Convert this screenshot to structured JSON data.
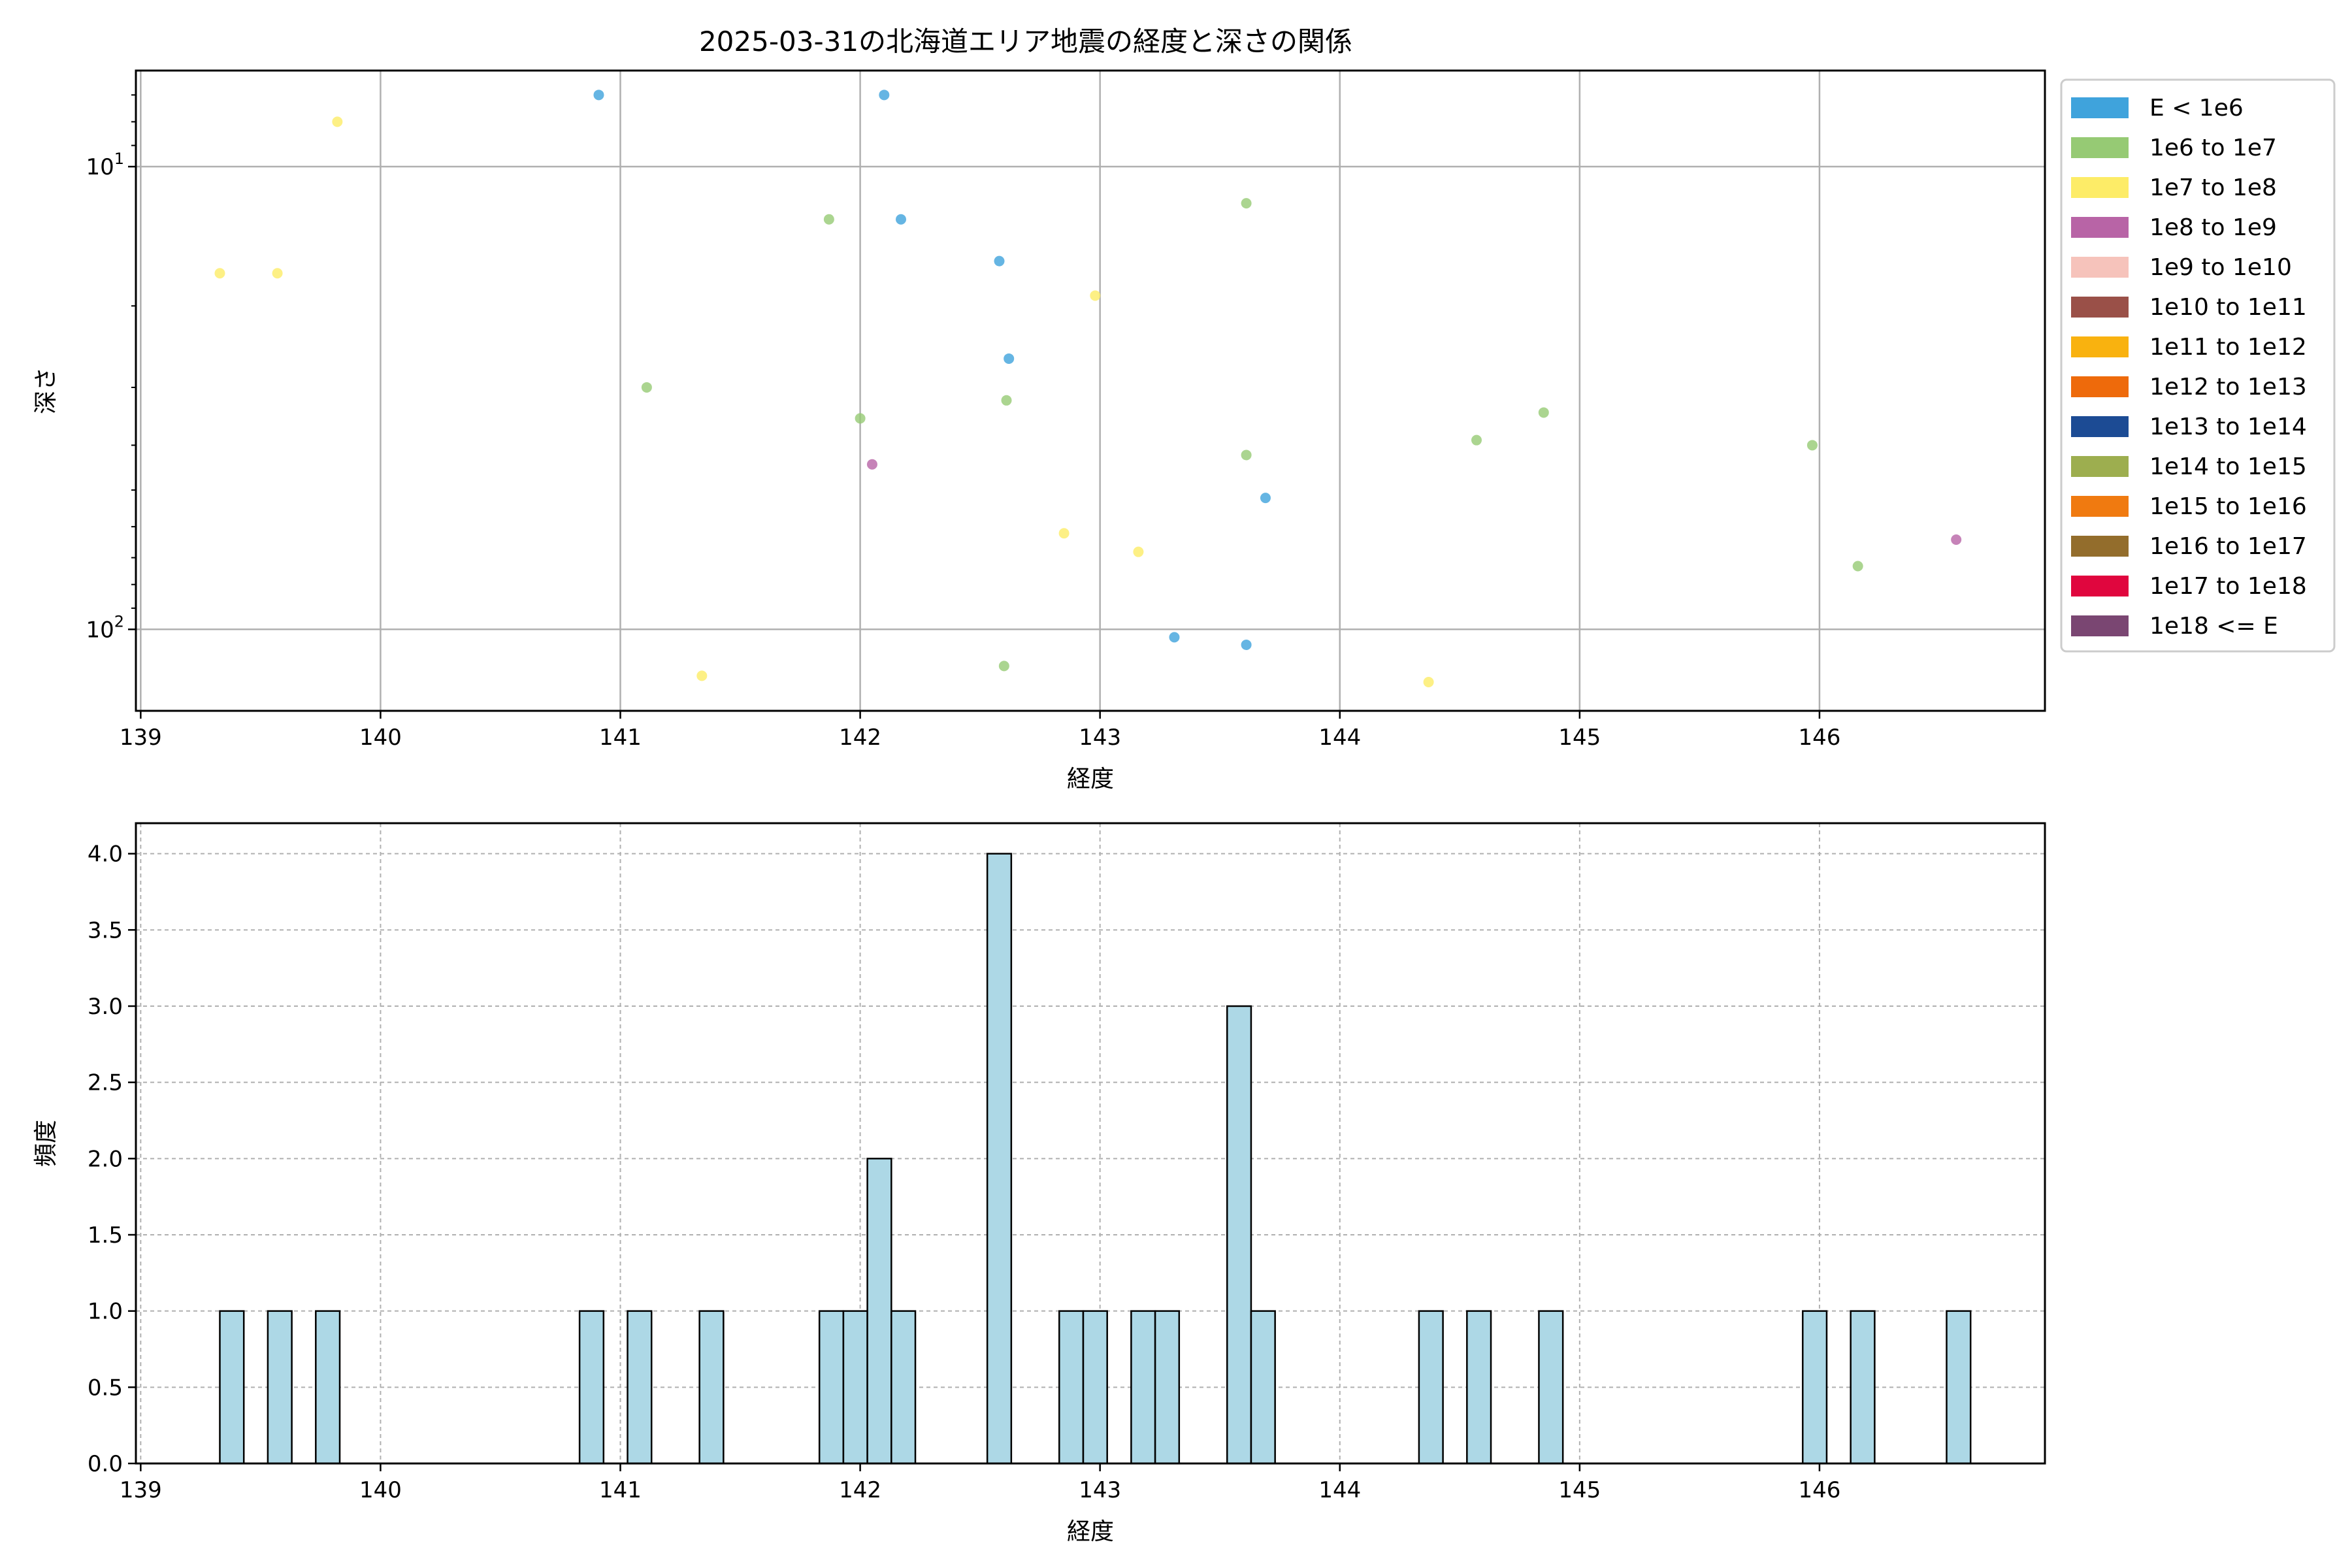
{
  "figure_title": "2025-03-31の北海道エリア地震の経度と深さの関係",
  "chart_data": [
    {
      "type": "scatter",
      "xlabel": "経度",
      "ylabel": "深さ",
      "xlim": [
        138.98,
        146.94
      ],
      "ylim": [
        150,
        6.2
      ],
      "yscale": "log",
      "y_inverted": true,
      "grid": true,
      "xticks": [
        139,
        140,
        141,
        142,
        143,
        144,
        145,
        146
      ],
      "yticks": [
        {
          "value": 10,
          "label": "10^1"
        },
        {
          "value": 100,
          "label": "10^2"
        }
      ],
      "legend_position": "outside-right",
      "legend": [
        {
          "label": "E < 1e6",
          "color": "#3fa3dc"
        },
        {
          "label": "1e6 to 1e7",
          "color": "#96ca74"
        },
        {
          "label": "1e7 to 1e8",
          "color": "#fdec67"
        },
        {
          "label": "1e8 to 1e9",
          "color": "#b864a6"
        },
        {
          "label": "1e9 to 1e10",
          "color": "#f6c3bb"
        },
        {
          "label": "1e10 to 1e11",
          "color": "#9a5048"
        },
        {
          "label": "1e11 to 1e12",
          "color": "#f9b20f"
        },
        {
          "label": "1e12 to 1e13",
          "color": "#ee6a0b"
        },
        {
          "label": "1e13 to 1e14",
          "color": "#1c4b94"
        },
        {
          "label": "1e14 to 1e15",
          "color": "#9dae4f"
        },
        {
          "label": "1e15 to 1e16",
          "color": "#f07a10"
        },
        {
          "label": "1e16 to 1e17",
          "color": "#936d2c"
        },
        {
          "label": "1e17 to 1e18",
          "color": "#e0063e"
        },
        {
          "label": "1e18 <= E",
          "color": "#7a4672"
        }
      ],
      "points": [
        {
          "x": 140.91,
          "y": 7,
          "category": "E < 1e6"
        },
        {
          "x": 142.1,
          "y": 7,
          "category": "E < 1e6"
        },
        {
          "x": 142.17,
          "y": 13,
          "category": "E < 1e6"
        },
        {
          "x": 142.58,
          "y": 16,
          "category": "E < 1e6"
        },
        {
          "x": 142.62,
          "y": 26,
          "category": "E < 1e6"
        },
        {
          "x": 143.69,
          "y": 52,
          "category": "E < 1e6"
        },
        {
          "x": 143.31,
          "y": 104,
          "category": "E < 1e6"
        },
        {
          "x": 143.61,
          "y": 108,
          "category": "E < 1e6"
        },
        {
          "x": 141.87,
          "y": 13,
          "category": "1e6 to 1e7"
        },
        {
          "x": 143.61,
          "y": 12,
          "category": "1e6 to 1e7"
        },
        {
          "x": 141.11,
          "y": 30,
          "category": "1e6 to 1e7"
        },
        {
          "x": 142.0,
          "y": 35,
          "category": "1e6 to 1e7"
        },
        {
          "x": 142.61,
          "y": 32,
          "category": "1e6 to 1e7"
        },
        {
          "x": 143.61,
          "y": 42,
          "category": "1e6 to 1e7"
        },
        {
          "x": 144.57,
          "y": 39,
          "category": "1e6 to 1e7"
        },
        {
          "x": 144.85,
          "y": 34,
          "category": "1e6 to 1e7"
        },
        {
          "x": 145.97,
          "y": 40,
          "category": "1e6 to 1e7"
        },
        {
          "x": 146.16,
          "y": 73,
          "category": "1e6 to 1e7"
        },
        {
          "x": 142.6,
          "y": 120,
          "category": "1e6 to 1e7"
        },
        {
          "x": 139.33,
          "y": 17,
          "category": "1e7 to 1e8"
        },
        {
          "x": 139.57,
          "y": 17,
          "category": "1e7 to 1e8"
        },
        {
          "x": 139.82,
          "y": 8,
          "category": "1e7 to 1e8"
        },
        {
          "x": 142.98,
          "y": 19,
          "category": "1e7 to 1e8"
        },
        {
          "x": 142.85,
          "y": 62,
          "category": "1e7 to 1e8"
        },
        {
          "x": 143.16,
          "y": 68,
          "category": "1e7 to 1e8"
        },
        {
          "x": 141.34,
          "y": 126,
          "category": "1e7 to 1e8"
        },
        {
          "x": 144.37,
          "y": 130,
          "category": "1e7 to 1e8"
        },
        {
          "x": 142.05,
          "y": 44,
          "category": "1e8 to 1e9"
        },
        {
          "x": 146.57,
          "y": 64,
          "category": "1e8 to 1e9"
        }
      ]
    },
    {
      "type": "bar",
      "xlabel": "経度",
      "ylabel": "頻度",
      "xlim": [
        138.98,
        146.94
      ],
      "ylim": [
        0,
        4.2
      ],
      "grid": true,
      "xticks": [
        139,
        140,
        141,
        142,
        143,
        144,
        145,
        146
      ],
      "yticks": [
        "0.0",
        "0.5",
        "1.0",
        "1.5",
        "2.0",
        "2.5",
        "3.0",
        "3.5",
        "4.0"
      ],
      "bar_color": "#add8e6",
      "bin_width": 0.1,
      "bins": [
        {
          "x": 139.33,
          "count": 1
        },
        {
          "x": 139.53,
          "count": 1
        },
        {
          "x": 139.73,
          "count": 1
        },
        {
          "x": 140.83,
          "count": 1
        },
        {
          "x": 141.03,
          "count": 1
        },
        {
          "x": 141.33,
          "count": 1
        },
        {
          "x": 141.83,
          "count": 1
        },
        {
          "x": 141.93,
          "count": 1
        },
        {
          "x": 142.03,
          "count": 2
        },
        {
          "x": 142.13,
          "count": 1
        },
        {
          "x": 142.53,
          "count": 4
        },
        {
          "x": 142.83,
          "count": 1
        },
        {
          "x": 142.93,
          "count": 1
        },
        {
          "x": 143.13,
          "count": 1
        },
        {
          "x": 143.23,
          "count": 1
        },
        {
          "x": 143.53,
          "count": 3
        },
        {
          "x": 143.63,
          "count": 1
        },
        {
          "x": 144.33,
          "count": 1
        },
        {
          "x": 144.53,
          "count": 1
        },
        {
          "x": 144.83,
          "count": 1
        },
        {
          "x": 145.93,
          "count": 1
        },
        {
          "x": 146.13,
          "count": 1
        },
        {
          "x": 146.53,
          "count": 1
        }
      ]
    }
  ]
}
